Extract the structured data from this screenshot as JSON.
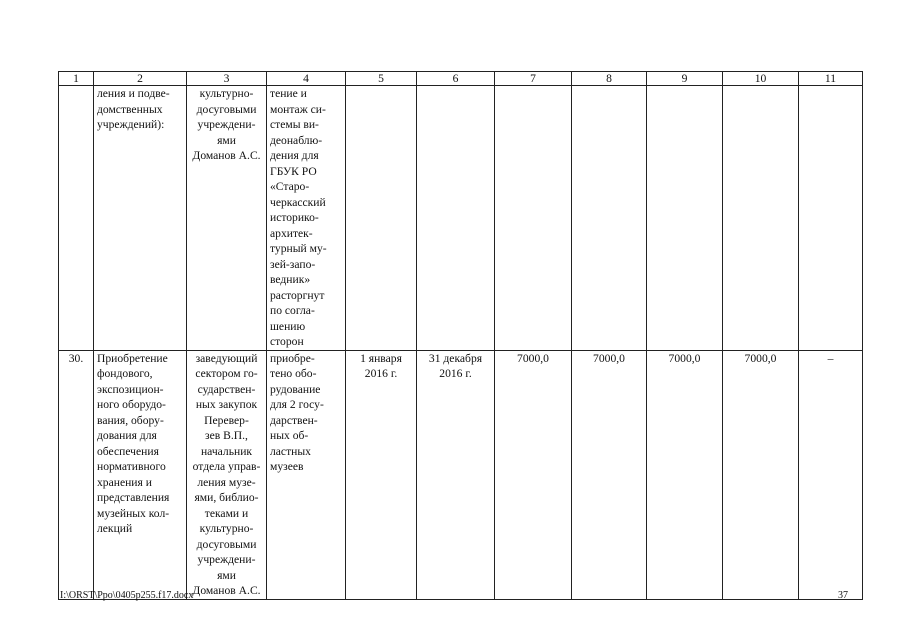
{
  "table": {
    "header": [
      "1",
      "2",
      "3",
      "4",
      "5",
      "6",
      "7",
      "8",
      "9",
      "10",
      "11"
    ],
    "rows": [
      {
        "cells": [
          [],
          [
            "ления и подве-",
            "домственных",
            "учреждений):"
          ],
          [
            "культурно-",
            "досуговыми",
            "учреждени-",
            "ями",
            "Доманов А.С."
          ],
          [
            "тение и",
            "монтаж си-",
            "стемы ви-",
            "деонаблю-",
            "дения для",
            "ГБУК РО",
            "«Старо-",
            "черкасский",
            "историко-",
            "архитек-",
            "турный му-",
            "зей-запо-",
            "ведник»",
            "расторгнут",
            "по согла-",
            "шению",
            "сторон"
          ],
          [],
          [],
          [],
          [],
          [],
          [],
          []
        ]
      },
      {
        "cells": [
          [
            "30."
          ],
          [
            "Приобретение",
            "фондового,",
            "экспозицион-",
            "ного оборудо-",
            "вания, обору-",
            "дования для",
            "обеспечения",
            "нормативного",
            "хранения и",
            "представления",
            "музейных кол-",
            "лекций"
          ],
          [
            "заведующий",
            "сектором го-",
            "сударствен-",
            "ных закупок",
            "Перевер-",
            "зев В.П.,",
            "начальник",
            "отдела управ-",
            "ления музе-",
            "ями, библио-",
            "теками и",
            "культурно-",
            "досуговыми",
            "учреждени-",
            "ями",
            "Доманов А.С."
          ],
          [
            "приобре-",
            "тено обо-",
            "рудование",
            "для 2 госу-",
            "дарствен-",
            "ных об-",
            "ластных",
            "музеев"
          ],
          [
            "1 января",
            "2016 г."
          ],
          [
            "31 декабря",
            "2016 г."
          ],
          [
            "7000,0"
          ],
          [
            "7000,0"
          ],
          [
            "7000,0"
          ],
          [
            "7000,0"
          ],
          [
            "–"
          ]
        ]
      }
    ]
  },
  "footer": {
    "path": "I:\\ORST\\Ppo\\0405p255.f17.docx",
    "page_number": "37"
  }
}
